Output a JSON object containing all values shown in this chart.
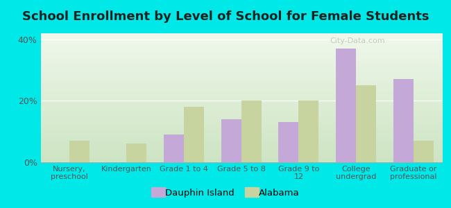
{
  "title": "School Enrollment by Level of School for Female Students",
  "categories": [
    "Nursery,\npreschool",
    "Kindergarten",
    "Grade 1 to 4",
    "Grade 5 to 8",
    "Grade 9 to\n12",
    "College\nundergrad",
    "Graduate or\nprofessional"
  ],
  "dauphin_island": [
    0,
    0,
    9,
    14,
    13,
    37,
    27
  ],
  "alabama": [
    7,
    6,
    18,
    20,
    20,
    25,
    7
  ],
  "dauphin_color": "#c4a8d8",
  "alabama_color": "#c8d4a0",
  "background_outer": "#00e8e8",
  "ylim": [
    0,
    42
  ],
  "yticks": [
    0,
    20,
    40
  ],
  "ytick_labels": [
    "0%",
    "20%",
    "40%"
  ],
  "legend_dauphin": "Dauphin Island",
  "legend_alabama": "Alabama",
  "title_fontsize": 13,
  "bar_width": 0.35,
  "figsize": [
    6.5,
    3.0
  ],
  "dpi": 100
}
